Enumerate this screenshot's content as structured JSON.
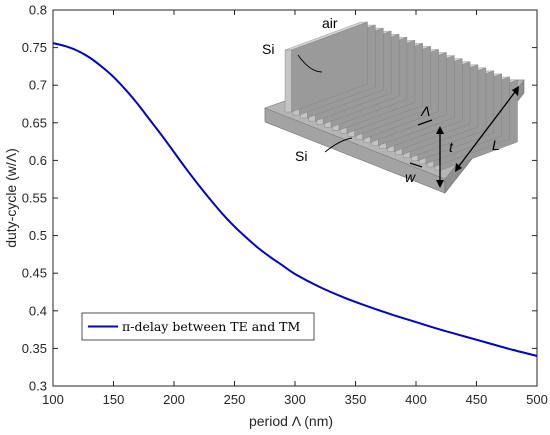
{
  "chart_data": {
    "type": "line",
    "xlabel": "period Λ (nm)",
    "ylabel": "duty-cycle (w/Λ)",
    "xlim": [
      100,
      500
    ],
    "ylim": [
      0.3,
      0.8
    ],
    "xticks": [
      100,
      150,
      200,
      250,
      300,
      350,
      400,
      450,
      500
    ],
    "yticks": [
      0.3,
      0.35,
      0.4,
      0.45,
      0.5,
      0.55,
      0.6,
      0.65,
      0.7,
      0.75,
      0.8
    ],
    "xtick_labels": [
      "100",
      "150",
      "200",
      "250",
      "300",
      "350",
      "400",
      "450",
      "500"
    ],
    "ytick_labels": [
      "0.3",
      "0.35",
      "0.4",
      "0.45",
      "0.5",
      "0.55",
      "0.6",
      "0.65",
      "0.7",
      "0.75",
      "0.8"
    ],
    "grid": false,
    "legend_position": "lower-left",
    "series": [
      {
        "name": "π-delay between TE and TM",
        "color": "#0000cc",
        "x": [
          100,
          110,
          120,
          130,
          140,
          150,
          160,
          170,
          180,
          190,
          200,
          210,
          220,
          230,
          240,
          250,
          260,
          270,
          280,
          290,
          300,
          320,
          340,
          360,
          380,
          400,
          420,
          440,
          460,
          480,
          500
        ],
        "y": [
          0.756,
          0.752,
          0.746,
          0.737,
          0.725,
          0.711,
          0.694,
          0.675,
          0.654,
          0.633,
          0.611,
          0.589,
          0.568,
          0.548,
          0.529,
          0.512,
          0.497,
          0.483,
          0.471,
          0.46,
          0.449,
          0.432,
          0.418,
          0.406,
          0.395,
          0.385,
          0.375,
          0.366,
          0.357,
          0.348,
          0.34
        ]
      }
    ]
  },
  "inset": {
    "labels": {
      "air": "air",
      "si_top": "Si",
      "si_bottom": "Si",
      "period": "Λ",
      "height": "t",
      "length": "L",
      "width": "w"
    }
  }
}
